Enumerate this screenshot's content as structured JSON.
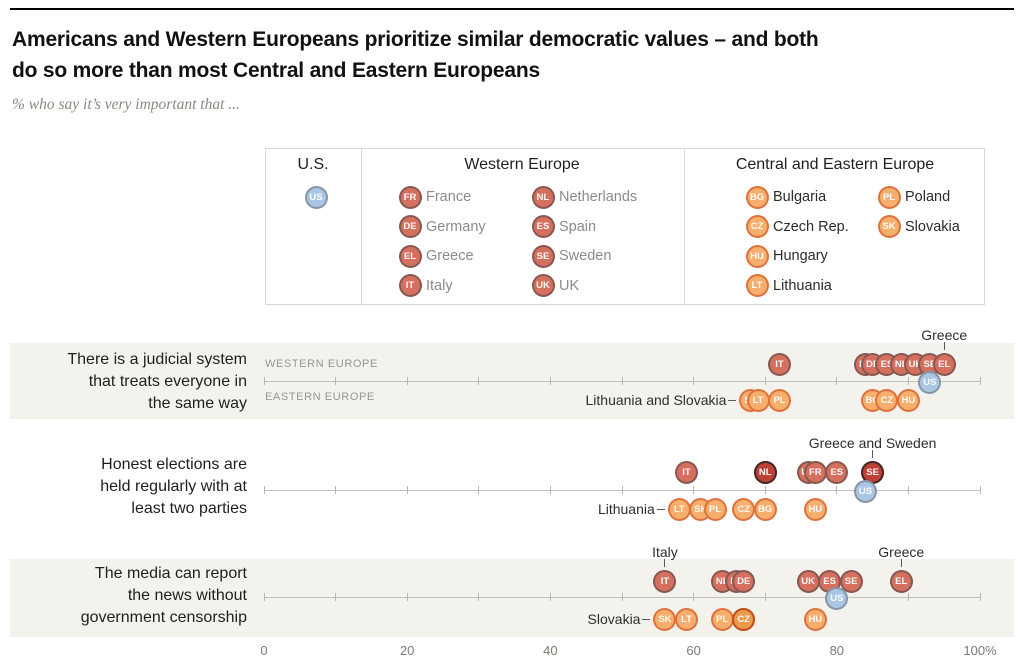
{
  "header": {
    "title_line1": "Americans and Western Europeans prioritize similar democratic values – and both",
    "title_line2": "do so more than most Central and Eastern Europeans",
    "subtitle": "% who say it’s very important that ..."
  },
  "legend": {
    "us": {
      "label": "U.S.",
      "code": "US"
    },
    "western": {
      "label": "Western Europe",
      "items": [
        {
          "code": "FR",
          "label": "France"
        },
        {
          "code": "DE",
          "label": "Germany"
        },
        {
          "code": "EL",
          "label": "Greece"
        },
        {
          "code": "IT",
          "label": "Italy"
        },
        {
          "code": "NL",
          "label": "Netherlands"
        },
        {
          "code": "ES",
          "label": "Spain"
        },
        {
          "code": "SE",
          "label": "Sweden"
        },
        {
          "code": "UK",
          "label": "UK"
        }
      ]
    },
    "eastern": {
      "label": "Central and Eastern Europe",
      "items": [
        {
          "code": "BG",
          "label": "Bulgaria"
        },
        {
          "code": "CZ",
          "label": "Czech Rep."
        },
        {
          "code": "HU",
          "label": "Hungary"
        },
        {
          "code": "LT",
          "label": "Lithuania"
        },
        {
          "code": "PL",
          "label": "Poland"
        },
        {
          "code": "SK",
          "label": "Slovakia"
        }
      ]
    }
  },
  "chart_data": {
    "type": "dot",
    "unit": "%",
    "x_axis": {
      "min": 0,
      "max": 100,
      "ticks": [
        0,
        20,
        40,
        60,
        80,
        100
      ],
      "tick_labels": [
        "0",
        "20",
        "40",
        "60",
        "80",
        "100%"
      ],
      "minor_tick_step": 10
    },
    "group_row_labels": {
      "west": "WESTERN EUROPE",
      "east": "EASTERN EUROPE"
    },
    "rows": [
      {
        "id": "judicial-system",
        "question_lines": [
          "There is a judicial system",
          "that treats everyone in",
          "the same way"
        ],
        "show_group_labels": true,
        "west": [
          {
            "code": "IT",
            "value": 72
          },
          {
            "code": "FR",
            "value": 84
          },
          {
            "code": "DE",
            "value": 85
          },
          {
            "code": "ES",
            "value": 87
          },
          {
            "code": "NL",
            "value": 89
          },
          {
            "code": "UK",
            "value": 91
          },
          {
            "code": "SE",
            "value": 93
          },
          {
            "code": "EL",
            "value": 95
          }
        ],
        "east": [
          {
            "code": "SK",
            "value": 68
          },
          {
            "code": "LT",
            "value": 69
          },
          {
            "code": "PL",
            "value": 72
          },
          {
            "code": "BG",
            "value": 85
          },
          {
            "code": "CZ",
            "value": 87
          },
          {
            "code": "HU",
            "value": 90
          }
        ],
        "us": {
          "code": "US",
          "value": 93
        },
        "annotations": [
          {
            "text": "Greece",
            "group": "west",
            "target": "EL",
            "position": "above"
          },
          {
            "text": "Lithuania and Slovakia",
            "group": "east",
            "target": "SK",
            "position": "left"
          }
        ]
      },
      {
        "id": "honest-elections",
        "question_lines": [
          "Honest elections are",
          "held regularly with at",
          "least two parties"
        ],
        "show_group_labels": false,
        "west": [
          {
            "code": "IT",
            "value": 59
          },
          {
            "code": "DE",
            "value": 70
          },
          {
            "code": "NL",
            "value": 70,
            "stacked": true
          },
          {
            "code": "UK",
            "value": 76
          },
          {
            "code": "FR",
            "value": 77
          },
          {
            "code": "ES",
            "value": 80
          },
          {
            "code": "EL",
            "value": 85
          },
          {
            "code": "SE",
            "value": 85,
            "stacked": true
          }
        ],
        "east": [
          {
            "code": "LT",
            "value": 58
          },
          {
            "code": "SK",
            "value": 61
          },
          {
            "code": "PL",
            "value": 63
          },
          {
            "code": "CZ",
            "value": 67
          },
          {
            "code": "BG",
            "value": 70
          },
          {
            "code": "HU",
            "value": 77
          }
        ],
        "us": {
          "code": "US",
          "value": 84
        },
        "annotations": [
          {
            "text": "Greece and Sweden",
            "group": "west",
            "target": "SE",
            "position": "above"
          },
          {
            "text": "Lithuania",
            "group": "east",
            "target": "LT",
            "position": "left"
          }
        ]
      },
      {
        "id": "media-freedom",
        "question_lines": [
          "The media can report",
          "the news without",
          "government censorship"
        ],
        "show_group_labels": false,
        "west": [
          {
            "code": "IT",
            "value": 56
          },
          {
            "code": "NL",
            "value": 64
          },
          {
            "code": "FR",
            "value": 66
          },
          {
            "code": "DE",
            "value": 67
          },
          {
            "code": "UK",
            "value": 76
          },
          {
            "code": "ES",
            "value": 79
          },
          {
            "code": "SE",
            "value": 82
          },
          {
            "code": "EL",
            "value": 89
          }
        ],
        "east": [
          {
            "code": "SK",
            "value": 56
          },
          {
            "code": "LT",
            "value": 59
          },
          {
            "code": "PL",
            "value": 64
          },
          {
            "code": "BG",
            "value": 67
          },
          {
            "code": "CZ",
            "value": 67,
            "stacked": true
          },
          {
            "code": "HU",
            "value": 77
          }
        ],
        "us": {
          "code": "US",
          "value": 80
        },
        "annotations": [
          {
            "text": "Italy",
            "group": "west",
            "target": "IT",
            "position": "above"
          },
          {
            "text": "Greece",
            "group": "west",
            "target": "EL",
            "position": "above"
          },
          {
            "text": "Slovakia",
            "group": "east",
            "target": "SK",
            "position": "left"
          }
        ]
      }
    ]
  },
  "colors": {
    "us_fill": "#a9c6e4",
    "western_fill": "#d5705f",
    "eastern_fill": "#f6ae6d",
    "western_stacked_fill": "#bc4236",
    "eastern_stacked_fill": "#ee9a4d",
    "band_background": "#f3f2ed",
    "axis_line": "#c2c1ba"
  }
}
